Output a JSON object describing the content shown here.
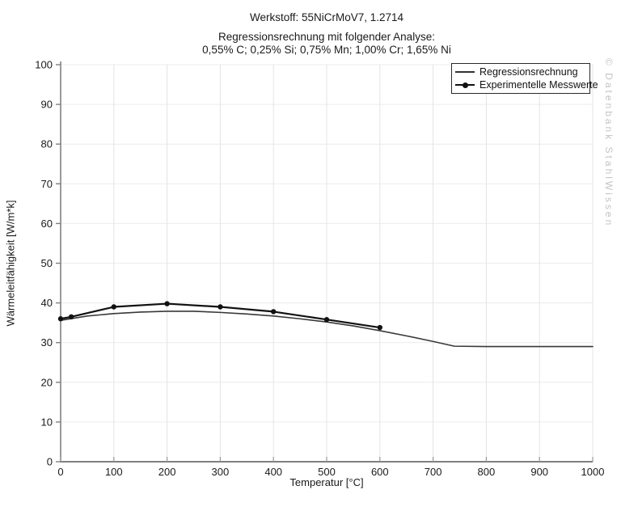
{
  "header": {
    "title": "Werkstoff: 55NiCrMoV7, 1.2714",
    "subtitle1": "Regressionsrechnung mit folgender Analyse:",
    "subtitle2": "0,55% C; 0,25% Si; 0,75% Mn; 1,00% Cr; 1,65% Ni"
  },
  "watermark": "© Datenbank StahlWissen",
  "legend": {
    "items": [
      {
        "label": "Regressionsrechnung",
        "marker": "line"
      },
      {
        "label": "Experimentelle Messwerte",
        "marker": "line-dot"
      }
    ]
  },
  "colors": {
    "regression_line": "#383838",
    "experimental_line": "#111111",
    "axis": "#808080",
    "grid_vertical": "#e4e4e4",
    "grid_horizontal": "#ececec",
    "tick": "#999999",
    "tick_label": "#1a1a1a",
    "watermark": "#c4c4c4"
  },
  "chart_data": {
    "type": "line",
    "title": "Werkstoff: 55NiCrMoV7, 1.2714",
    "subtitle": "Regressionsrechnung mit folgender Analyse: 0,55% C; 0,25% Si; 0,75% Mn; 1,00% Cr; 1,65% Ni",
    "xlabel": "Temperatur [°C]",
    "ylabel": "Wärmeleitfähigkeit [W/m*k]",
    "xlim": [
      0,
      1000
    ],
    "ylim": [
      0,
      100
    ],
    "xticks": [
      0,
      100,
      200,
      300,
      400,
      500,
      600,
      700,
      800,
      900,
      1000
    ],
    "yticks": [
      0,
      10,
      20,
      30,
      40,
      50,
      60,
      70,
      80,
      90,
      100
    ],
    "grid": true,
    "legend_position": "top-right",
    "series": [
      {
        "name": "Regressionsrechnung",
        "color": "#383838",
        "width": 1.6,
        "marker": false,
        "x": [
          0,
          50,
          100,
          150,
          200,
          250,
          300,
          350,
          400,
          450,
          500,
          550,
          600,
          650,
          700,
          740,
          800,
          900,
          1000
        ],
        "y": [
          35.6,
          36.7,
          37.3,
          37.7,
          37.9,
          37.9,
          37.6,
          37.2,
          36.7,
          36.0,
          35.2,
          34.2,
          33.0,
          31.7,
          30.3,
          29.1,
          29.0,
          29.0,
          29.0
        ]
      },
      {
        "name": "Experimentelle Messwerte",
        "color": "#111111",
        "width": 2.2,
        "marker": true,
        "x": [
          0,
          20,
          100,
          200,
          300,
          400,
          500,
          600
        ],
        "y": [
          36.0,
          36.5,
          39.0,
          39.8,
          39.0,
          37.8,
          35.8,
          33.8
        ]
      }
    ]
  }
}
